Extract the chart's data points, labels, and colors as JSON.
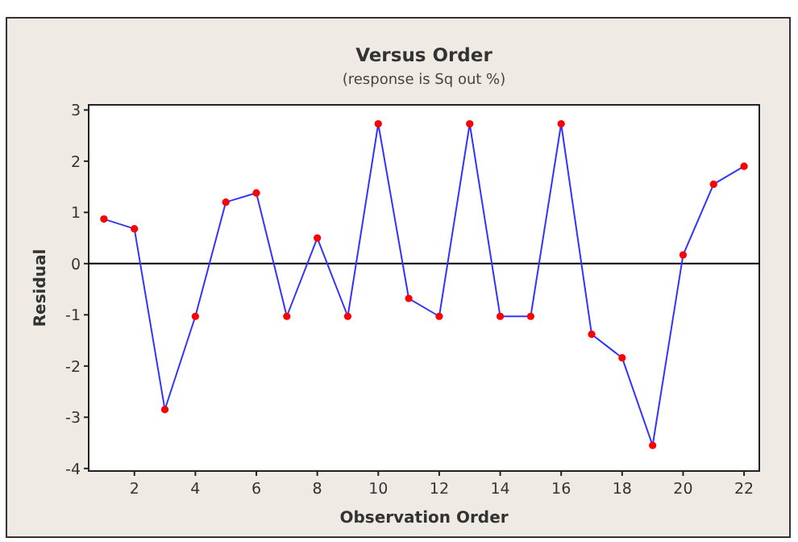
{
  "chart_data": {
    "type": "line",
    "title": "Versus Order",
    "subtitle": "(response is Sq out %)",
    "xlabel": "Observation Order",
    "ylabel": "Residual",
    "x": [
      1,
      2,
      3,
      4,
      5,
      6,
      7,
      8,
      9,
      10,
      11,
      12,
      13,
      14,
      15,
      16,
      17,
      18,
      19,
      20,
      21,
      22
    ],
    "series": [
      {
        "color": "#3333ff",
        "values": [
          0.87,
          0.68,
          -2.85,
          -1.03,
          1.2,
          1.38,
          -1.03,
          0.5,
          -1.03,
          2.73,
          -0.68,
          -1.03,
          2.73,
          -1.03,
          -1.03,
          2.73,
          -1.38,
          -1.84,
          -3.55,
          0.17,
          1.55,
          1.9
        ]
      }
    ],
    "marker": "circle",
    "line_style": "solid",
    "xlim": [
      0.5,
      22.5
    ],
    "ylim": [
      -4.05,
      3.1
    ],
    "xticks": [
      2,
      4,
      6,
      8,
      10,
      12,
      14,
      16,
      18,
      20,
      22
    ],
    "yticks": [
      -4,
      -3,
      -2,
      -1,
      0,
      1,
      2,
      3
    ],
    "ref_lines": [
      {
        "axis": "y",
        "value": 0,
        "color": "#000000"
      }
    ],
    "grid": false
  }
}
